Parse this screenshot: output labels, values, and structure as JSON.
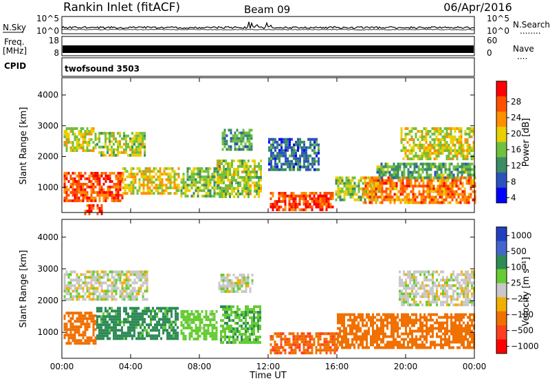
{
  "header": {
    "station": "Rankin Inlet (fitACF)",
    "beam": "Beam 09",
    "date": "06/Apr/2016"
  },
  "noise_panel": {
    "left_label": "N.Sky",
    "right_label": "N.Search",
    "right_dots": "........",
    "left_ticks": [
      "10^5",
      "10^0"
    ],
    "right_ticks": [
      "10^5",
      "10^0"
    ]
  },
  "freq_panel": {
    "left_label_line1": "Freq.",
    "left_label_line2": "[MHz]",
    "right_label": "Nave",
    "right_dots": "....",
    "left_ticks": [
      "18",
      "8"
    ],
    "right_ticks": [
      "60",
      "0"
    ]
  },
  "cpid_panel": {
    "label": "CPID",
    "value": "twofsound 3503"
  },
  "colors": {
    "power_scale": [
      "#0000ff",
      "#2a52be",
      "#3c8c64",
      "#70c040",
      "#e8d000",
      "#ff9000",
      "#ff5000",
      "#ff0000"
    ],
    "velocity_scale": [
      "#2040c0",
      "#4466cc",
      "#2e8b57",
      "#66cc33",
      "#c8c8c8",
      "#f0b000",
      "#f07000",
      "#ff4020",
      "#ff0000"
    ]
  },
  "chart_data": [
    {
      "type": "heatmap",
      "title": "",
      "ylabel": "Slant Range [km]",
      "xlabel": "",
      "x_ticks": [
        "00:00",
        "04:00",
        "08:00",
        "12:00",
        "16:00",
        "20:00",
        "00:00"
      ],
      "x_hours": [
        0,
        4,
        8,
        12,
        16,
        20,
        24
      ],
      "y_ticks": [
        1000,
        2000,
        3000,
        4000
      ],
      "ylim": [
        180,
        4560
      ],
      "xlim": [
        0,
        24
      ],
      "colorbar_label": "Power [dB]",
      "colorbar_ticks": [
        "28",
        "24",
        "20",
        "16",
        "12",
        "8",
        "4"
      ],
      "colorbar_levels": [
        28,
        24,
        20,
        16,
        12,
        8,
        4
      ],
      "clim": [
        0,
        32
      ],
      "regions": [
        {
          "t": [
            0.1,
            2.0
          ],
          "r": [
            2150,
            2950
          ],
          "v": 17
        },
        {
          "t": [
            2.0,
            4.8
          ],
          "r": [
            2050,
            2800
          ],
          "v": 16
        },
        {
          "t": [
            0.1,
            3.5
          ],
          "r": [
            600,
            1500
          ],
          "v": 26
        },
        {
          "t": [
            3.5,
            6.8
          ],
          "r": [
            800,
            1650
          ],
          "v": 18
        },
        {
          "t": [
            1.3,
            2.3
          ],
          "r": [
            180,
            450
          ],
          "v": 27
        },
        {
          "t": [
            6.9,
            9.2
          ],
          "r": [
            700,
            1650
          ],
          "v": 14
        },
        {
          "t": [
            9.3,
            11.1
          ],
          "r": [
            2250,
            2900
          ],
          "v": 11
        },
        {
          "t": [
            9.0,
            11.6
          ],
          "r": [
            650,
            1900
          ],
          "v": 16
        },
        {
          "t": [
            12.1,
            15.8
          ],
          "r": [
            300,
            850
          ],
          "v": 27
        },
        {
          "t": [
            12.0,
            15.0
          ],
          "r": [
            1600,
            2600
          ],
          "v": 8
        },
        {
          "t": [
            15.9,
            18.6
          ],
          "r": [
            600,
            1350
          ],
          "v": 14
        },
        {
          "t": [
            17.5,
            24.0
          ],
          "r": [
            500,
            1350
          ],
          "v": 24
        },
        {
          "t": [
            18.3,
            24.0
          ],
          "r": [
            1350,
            1800
          ],
          "v": 12
        },
        {
          "t": [
            19.7,
            24.0
          ],
          "r": [
            1900,
            2950
          ],
          "v": 17
        }
      ]
    },
    {
      "type": "heatmap",
      "title": "",
      "ylabel": "Slant Range [km]",
      "xlabel": "Time UT",
      "x_ticks": [
        "00:00",
        "04:00",
        "08:00",
        "12:00",
        "16:00",
        "20:00",
        "00:00"
      ],
      "x_hours": [
        0,
        4,
        8,
        12,
        16,
        20,
        24
      ],
      "y_ticks": [
        1000,
        2000,
        3000,
        4000
      ],
      "ylim": [
        180,
        4560
      ],
      "xlim": [
        0,
        24
      ],
      "colorbar_label": "Velocity [m s⁻¹]",
      "colorbar_ticks": [
        "1000",
        "500",
        "100",
        "25",
        "−25",
        "−100",
        "−500",
        "−1000"
      ],
      "colorbar_levels": [
        1000,
        500,
        100,
        25,
        -25,
        -100,
        -500,
        -1000
      ],
      "clim": [
        -1000,
        1000
      ],
      "regions": [
        {
          "t": [
            0.1,
            5.0
          ],
          "r": [
            2050,
            2950
          ],
          "v": 0
        },
        {
          "t": [
            0.1,
            2.0
          ],
          "r": [
            650,
            1650
          ],
          "v": -300
        },
        {
          "t": [
            2.0,
            6.8
          ],
          "r": [
            800,
            1800
          ],
          "v": 150
        },
        {
          "t": [
            6.9,
            9.0
          ],
          "r": [
            750,
            1700
          ],
          "v": 60
        },
        {
          "t": [
            9.1,
            11.1
          ],
          "r": [
            2300,
            2850
          ],
          "v": 0
        },
        {
          "t": [
            9.2,
            11.6
          ],
          "r": [
            650,
            1850
          ],
          "v": 80
        },
        {
          "t": [
            12.1,
            16.0
          ],
          "r": [
            350,
            1000
          ],
          "v": -420
        },
        {
          "t": [
            16.0,
            24.0
          ],
          "r": [
            550,
            1600
          ],
          "v": -350
        },
        {
          "t": [
            19.6,
            24.0
          ],
          "r": [
            1850,
            2950
          ],
          "v": 0
        }
      ]
    }
  ]
}
